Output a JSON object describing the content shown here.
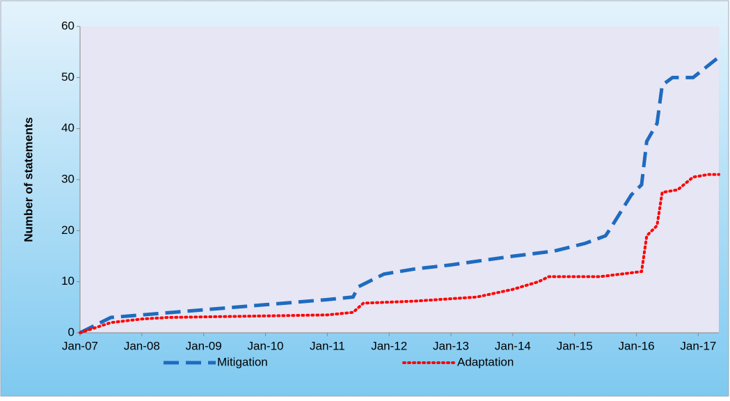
{
  "chart_data": {
    "type": "line",
    "ylabel": "Number of statements",
    "xlim": [
      "2007-01",
      "2017-05"
    ],
    "xticks": [
      {
        "value": "2007-01",
        "label": "Jan-07"
      },
      {
        "value": "2008-01",
        "label": "Jan-08"
      },
      {
        "value": "2009-01",
        "label": "Jan-09"
      },
      {
        "value": "2010-01",
        "label": "Jan-10"
      },
      {
        "value": "2011-01",
        "label": "Jan-11"
      },
      {
        "value": "2012-01",
        "label": "Jan-12"
      },
      {
        "value": "2013-01",
        "label": "Jan-13"
      },
      {
        "value": "2014-01",
        "label": "Jan-14"
      },
      {
        "value": "2015-01",
        "label": "Jan-15"
      },
      {
        "value": "2016-01",
        "label": "Jan-16"
      },
      {
        "value": "2017-01",
        "label": "Jan-17"
      }
    ],
    "ylim": [
      0,
      60
    ],
    "yticks": [
      0,
      10,
      20,
      30,
      40,
      50,
      60
    ],
    "grid": false,
    "legend": "bottom",
    "series": [
      {
        "name": "Mitigation",
        "color": "#1f6bbf",
        "dash": "dashed",
        "x": [
          "2007-01",
          "2007-07",
          "2008-01",
          "2009-01",
          "2010-01",
          "2011-01",
          "2011-06",
          "2011-07",
          "2011-12",
          "2012-06",
          "2013-01",
          "2014-01",
          "2014-09",
          "2015-03",
          "2015-07",
          "2015-08",
          "2015-12",
          "2016-02",
          "2016-03",
          "2016-05",
          "2016-06",
          "2016-08",
          "2016-12",
          "2017-05"
        ],
        "values": [
          0,
          3,
          3.5,
          4.5,
          5.5,
          6.5,
          7,
          9,
          11.5,
          12.5,
          13.3,
          15,
          16,
          17.5,
          19,
          20.5,
          27,
          29,
          37.5,
          41,
          48.5,
          50,
          50,
          54
        ]
      },
      {
        "name": "Adaptation",
        "color": "#ff0000",
        "dash": "dotted",
        "x": [
          "2007-01",
          "2007-07",
          "2008-01",
          "2008-06",
          "2011-01",
          "2011-06",
          "2011-08",
          "2012-06",
          "2013-06",
          "2014-01",
          "2014-06",
          "2014-08",
          "2015-06",
          "2016-02",
          "2016-03",
          "2016-05",
          "2016-06",
          "2016-09",
          "2016-12",
          "2017-03",
          "2017-05"
        ],
        "values": [
          0,
          2,
          2.7,
          3,
          3.5,
          4,
          5.8,
          6.2,
          7,
          8.5,
          10,
          11,
          11,
          12,
          19,
          21,
          27.5,
          28,
          30.5,
          31,
          31
        ]
      }
    ]
  }
}
